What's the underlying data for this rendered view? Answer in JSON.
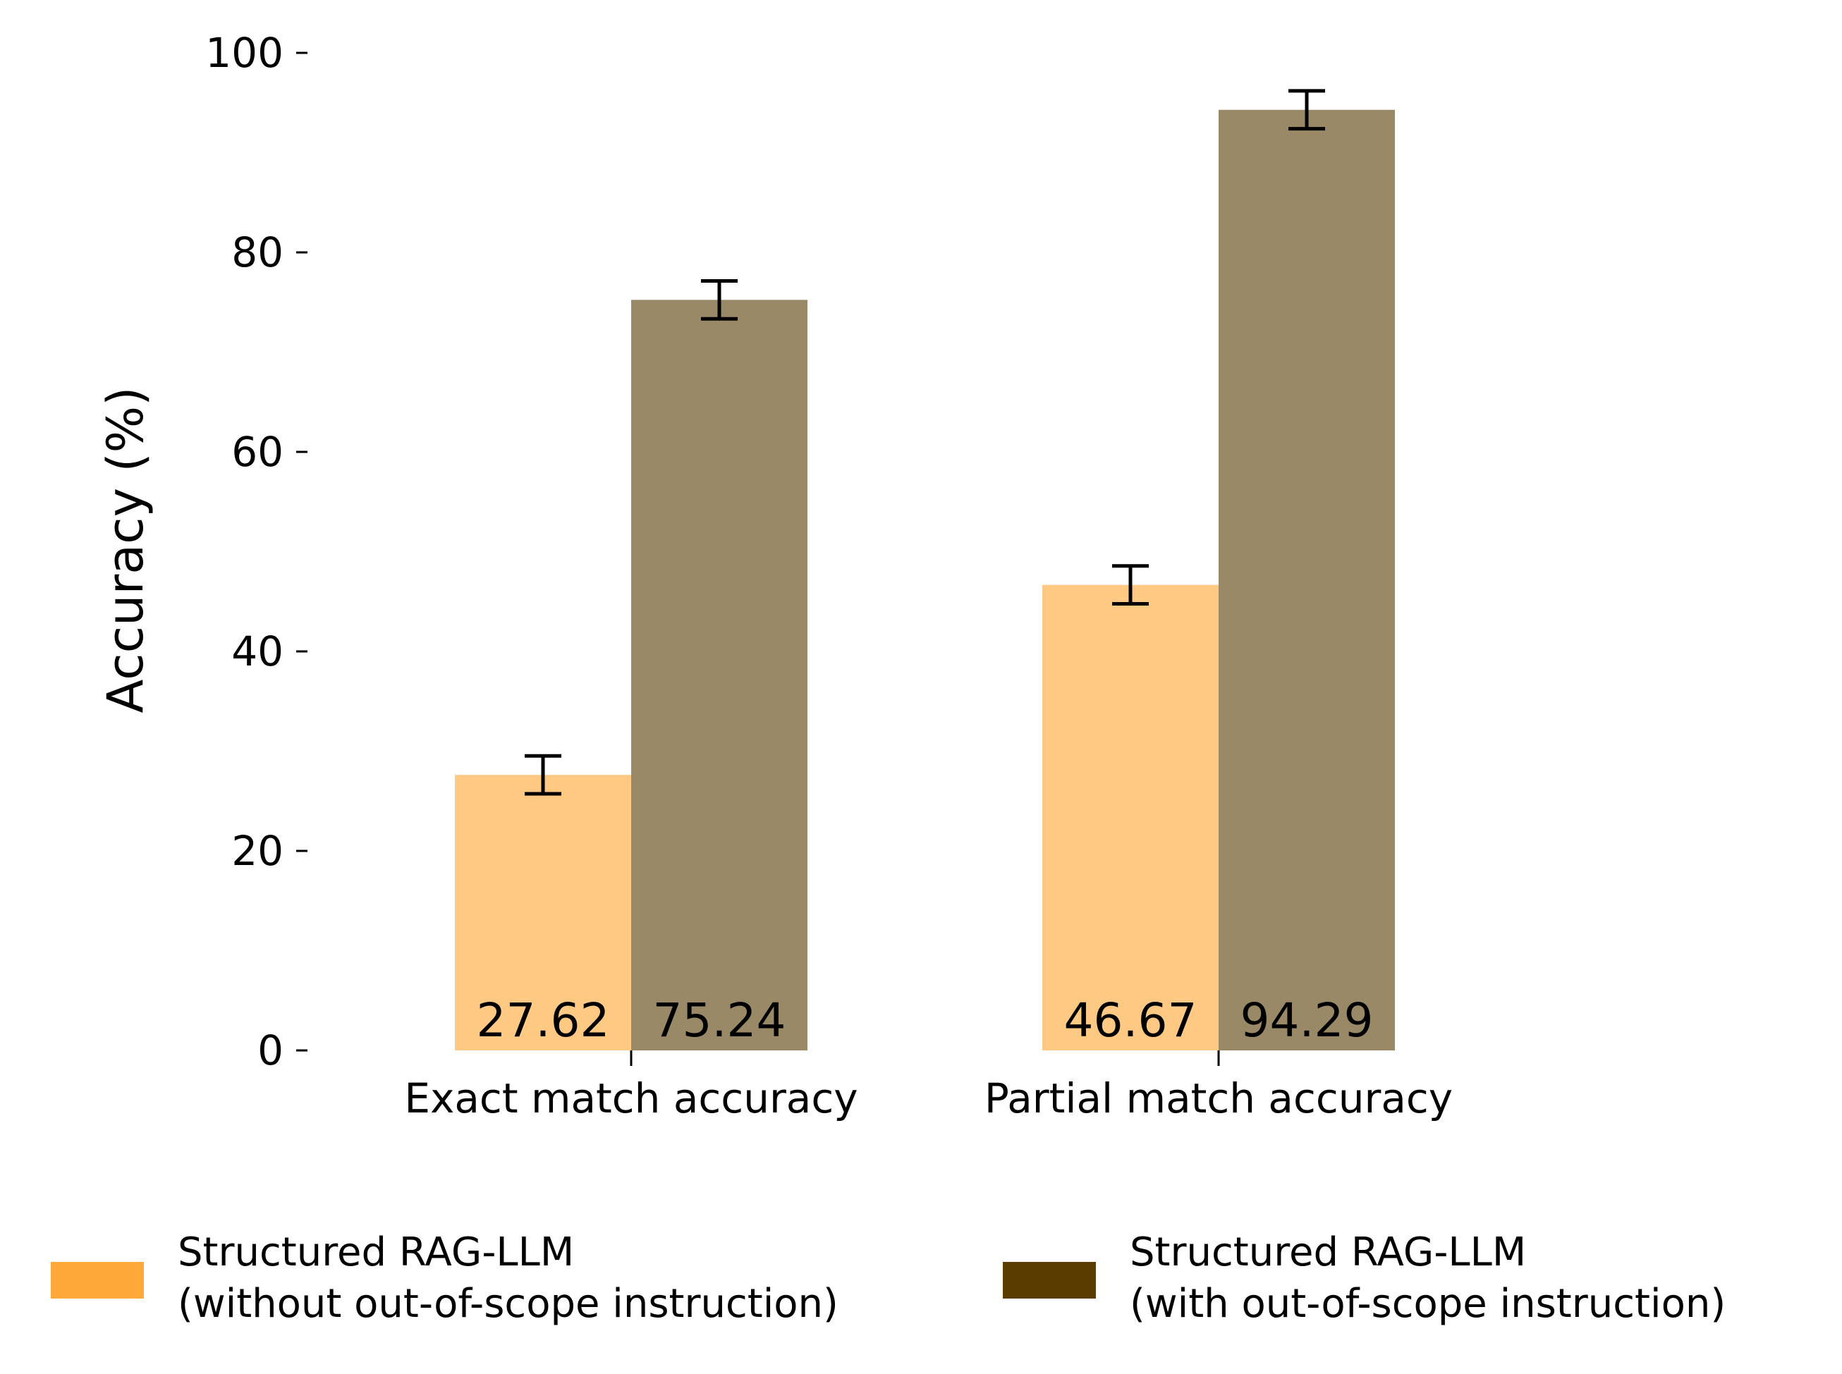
{
  "chart_data": {
    "type": "bar",
    "categories": [
      "Exact match accuracy",
      "Partial match accuracy"
    ],
    "series": [
      {
        "legend_line1": "Structured RAG-LLM",
        "legend_line2": "(without out-of-scope instruction)",
        "bar_color": "#fec983",
        "legend_color": "#ffa93a",
        "values": [
          27.62,
          46.67
        ],
        "error": [
          1.9,
          1.9
        ],
        "labels": [
          "27.62",
          "46.67"
        ]
      },
      {
        "legend_line1": "Structured RAG-LLM",
        "legend_line2": "(with out-of-scope instruction)",
        "bar_color": "#998966",
        "legend_color": "#5a3b00",
        "values": [
          75.24,
          94.29
        ],
        "error": [
          1.9,
          1.9
        ],
        "labels": [
          "75.24",
          "94.29"
        ]
      }
    ],
    "ylabel": "Accuracy (%)",
    "xlabel": "",
    "ylim": [
      0,
      100
    ],
    "yticks": [
      0,
      20,
      40,
      60,
      80,
      100
    ],
    "grid": false,
    "legend_position": "bottom"
  }
}
